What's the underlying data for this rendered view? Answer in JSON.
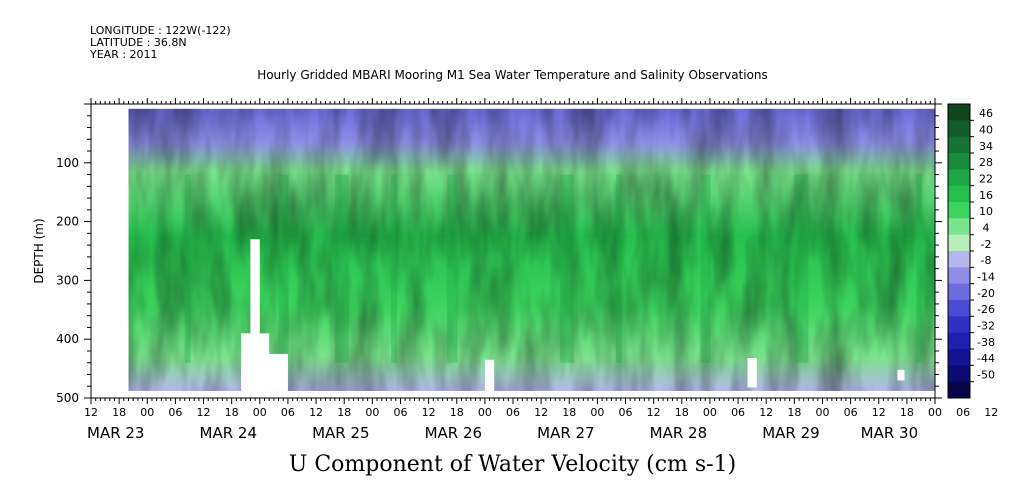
{
  "meta": {
    "longitude": "LONGITUDE : 122W(-122)",
    "latitude": "LATITUDE : 36.8N",
    "year": "YEAR : 2011"
  },
  "chart_data": {
    "type": "heatmap",
    "title": "Hourly Gridded MBARI Mooring M1 Sea Water Temperature and Salinity Observations",
    "footer_title": "U Component of Water Velocity (cm s-1)",
    "ylabel": "DEPTH (m)",
    "xlabel": "",
    "x_range_hours": [
      0,
      180
    ],
    "y_range": [
      0,
      500
    ],
    "y_inverted": true,
    "y_ticks": [
      100,
      200,
      300,
      400,
      500
    ],
    "x_hour_ticks": [
      "12",
      "18",
      "00",
      "06",
      "12",
      "18",
      "00",
      "06",
      "12",
      "18",
      "00",
      "06",
      "12",
      "18",
      "00",
      "06",
      "12",
      "18",
      "00",
      "06",
      "12",
      "18",
      "00",
      "06",
      "12",
      "18",
      "00",
      "06",
      "12",
      "18",
      "00",
      "06",
      "12"
    ],
    "x_date_labels": [
      {
        "label": "MAR 23",
        "hour": 0
      },
      {
        "label": "MAR 24",
        "hour": 24
      },
      {
        "label": "MAR 25",
        "hour": 48
      },
      {
        "label": "MAR 26",
        "hour": 72
      },
      {
        "label": "MAR 27",
        "hour": 96
      },
      {
        "label": "MAR 28",
        "hour": 120
      },
      {
        "label": "MAR 29",
        "hour": 144
      },
      {
        "label": "MAR 30",
        "hour": 165
      }
    ],
    "data_extent": {
      "x_start_hours": 8,
      "x_end_hours": 180,
      "depth_top": 8,
      "depth_bottom": 488
    },
    "gaps": [
      {
        "x0": 34,
        "x1": 36,
        "d0": 230,
        "d1": 488
      },
      {
        "x0": 32,
        "x1": 38,
        "d0": 390,
        "d1": 488
      },
      {
        "x0": 36,
        "x1": 42,
        "d0": 425,
        "d1": 488
      },
      {
        "x0": 84,
        "x1": 86,
        "d0": 435,
        "d1": 488
      },
      {
        "x0": 140,
        "x1": 142,
        "d0": 432,
        "d1": 482
      },
      {
        "x0": 172,
        "x1": 173.5,
        "d0": 452,
        "d1": 470
      }
    ],
    "colorbar": {
      "levels": [
        46,
        40,
        34,
        28,
        22,
        16,
        10,
        4,
        -2,
        -8,
        -14,
        -20,
        -26,
        -32,
        -38,
        -44,
        -50
      ],
      "colors": [
        "#11451f",
        "#135c2b",
        "#157335",
        "#198b3d",
        "#1ea646",
        "#26bf4e",
        "#3cd35e",
        "#7be38d",
        "#b8eeb9",
        "#b6b6ee",
        "#8e8ee6",
        "#6c6cdd",
        "#4b4bd4",
        "#3030c6",
        "#1f1fb0",
        "#151593",
        "#0b0b72",
        "#070748"
      ]
    }
  }
}
